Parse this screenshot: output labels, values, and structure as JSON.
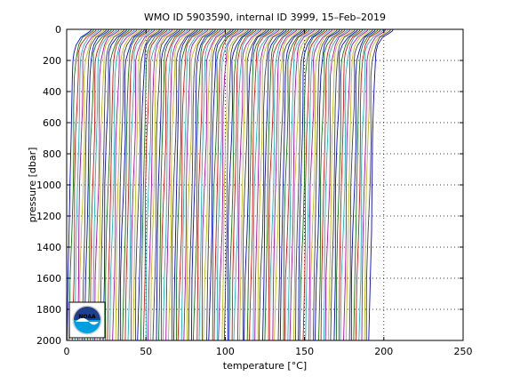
{
  "chart_data": {
    "type": "line",
    "title": "WMO ID 5903590, internal ID 3999, 15–Feb–2019",
    "xlabel_pre": "temperature [",
    "xlabel_unit": "°C",
    "xlabel_post": "]",
    "ylabel": "pressure [dbar]",
    "xlim": [
      0,
      250
    ],
    "ylim": [
      0,
      2000
    ],
    "y_reversed": true,
    "grid": "dotted",
    "x_ticks": [
      0,
      50,
      100,
      150,
      200,
      250
    ],
    "x_tick_labels": [
      "0",
      "50",
      "100",
      "150",
      "200",
      "250"
    ],
    "y_ticks": [
      0,
      200,
      400,
      600,
      800,
      1000,
      1200,
      1400,
      1600,
      1800,
      2000
    ],
    "y_tick_labels": [
      "0",
      "200",
      "400",
      "600",
      "800",
      "1000",
      "1200",
      "1400",
      "1600",
      "1800",
      "2000"
    ],
    "profile_shape": {
      "pressure": [
        0,
        10,
        25,
        50,
        100,
        150,
        200,
        300,
        500,
        700,
        1000,
        1300,
        1600,
        2000
      ],
      "temperature_offset": [
        12.5,
        12.0,
        10.0,
        6.0,
        3.0,
        1.6,
        1.0,
        0.6,
        0.2,
        -0.2,
        -0.9,
        -1.5,
        -2.1,
        -2.7
      ]
    },
    "series": {
      "count": 120,
      "offset_first": 3,
      "offset_spacing": 1.6,
      "colors": [
        "#0000ff",
        "#008000",
        "#ff0000",
        "#00bfbf",
        "#bf00bf",
        "#bfbf00",
        "#404040"
      ]
    },
    "logo": {
      "label": "NOAA",
      "colors": {
        "outer": "#ffffff",
        "top": "#1f3f8f",
        "bottom": "#00a0e0",
        "border": "#000000"
      }
    }
  }
}
